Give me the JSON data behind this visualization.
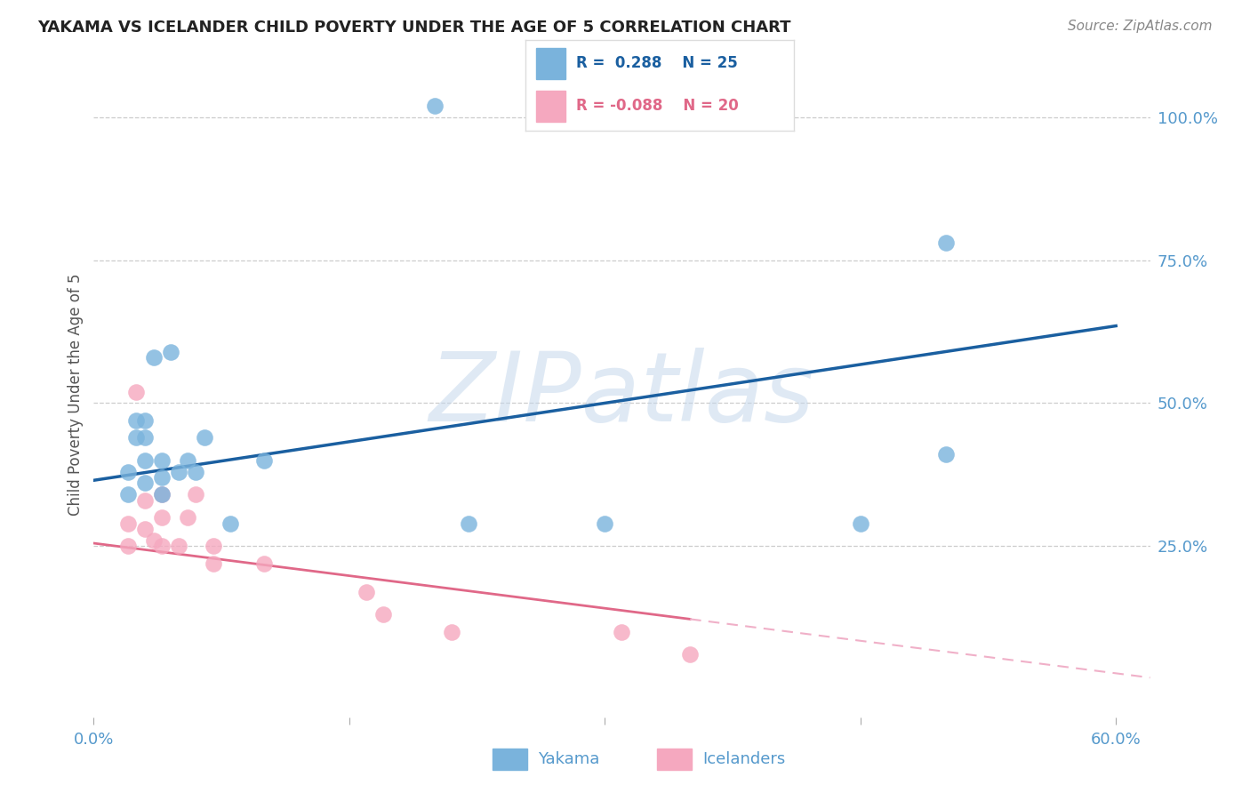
{
  "title": "YAKAMA VS ICELANDER CHILD POVERTY UNDER THE AGE OF 5 CORRELATION CHART",
  "source": "Source: ZipAtlas.com",
  "ylabel": "Child Poverty Under the Age of 5",
  "xlim": [
    0.0,
    0.62
  ],
  "ylim": [
    -0.05,
    1.08
  ],
  "background_color": "#ffffff",
  "watermark_text": "ZIPatlas",
  "watermark_color": "#c5d8ec",
  "yakama_color": "#7ab3dc",
  "icelander_color": "#f5a8bf",
  "trendline_yakama_color": "#1a5fa0",
  "trendline_icelander_solid_color": "#e06888",
  "trendline_icelander_dashed_color": "#f0b0c8",
  "axis_label_color": "#5599cc",
  "grid_color": "#cccccc",
  "legend_border_color": "#dddddd",
  "legend_yakama_text_color": "#1a5fa0",
  "legend_icelander_text_color": "#e06888",
  "title_color": "#222222",
  "source_color": "#888888",
  "ylabel_color": "#555555",
  "yakama_x": [
    0.02,
    0.02,
    0.025,
    0.025,
    0.03,
    0.03,
    0.03,
    0.03,
    0.035,
    0.04,
    0.04,
    0.04,
    0.045,
    0.05,
    0.055,
    0.06,
    0.065,
    0.08,
    0.1,
    0.22,
    0.3,
    0.5,
    0.5,
    0.2,
    0.45
  ],
  "yakama_y": [
    0.34,
    0.38,
    0.44,
    0.47,
    0.36,
    0.4,
    0.44,
    0.47,
    0.58,
    0.34,
    0.37,
    0.4,
    0.59,
    0.38,
    0.4,
    0.38,
    0.44,
    0.29,
    0.4,
    0.29,
    0.29,
    0.78,
    0.41,
    1.02,
    0.29
  ],
  "icelander_x": [
    0.02,
    0.02,
    0.025,
    0.03,
    0.03,
    0.035,
    0.04,
    0.04,
    0.04,
    0.05,
    0.055,
    0.06,
    0.07,
    0.07,
    0.1,
    0.16,
    0.17,
    0.21,
    0.31,
    0.35
  ],
  "icelander_y": [
    0.25,
    0.29,
    0.52,
    0.28,
    0.33,
    0.26,
    0.25,
    0.3,
    0.34,
    0.25,
    0.3,
    0.34,
    0.22,
    0.25,
    0.22,
    0.17,
    0.13,
    0.1,
    0.1,
    0.06
  ],
  "trendline_yakama_x0": 0.0,
  "trendline_yakama_y0": 0.365,
  "trendline_yakama_x1": 0.6,
  "trendline_yakama_y1": 0.635,
  "trendline_icel_x0": 0.0,
  "trendline_icel_y0": 0.255,
  "trendline_icel_break": 0.35,
  "trendline_icel_x1": 0.62,
  "trendline_icel_y1": 0.02
}
